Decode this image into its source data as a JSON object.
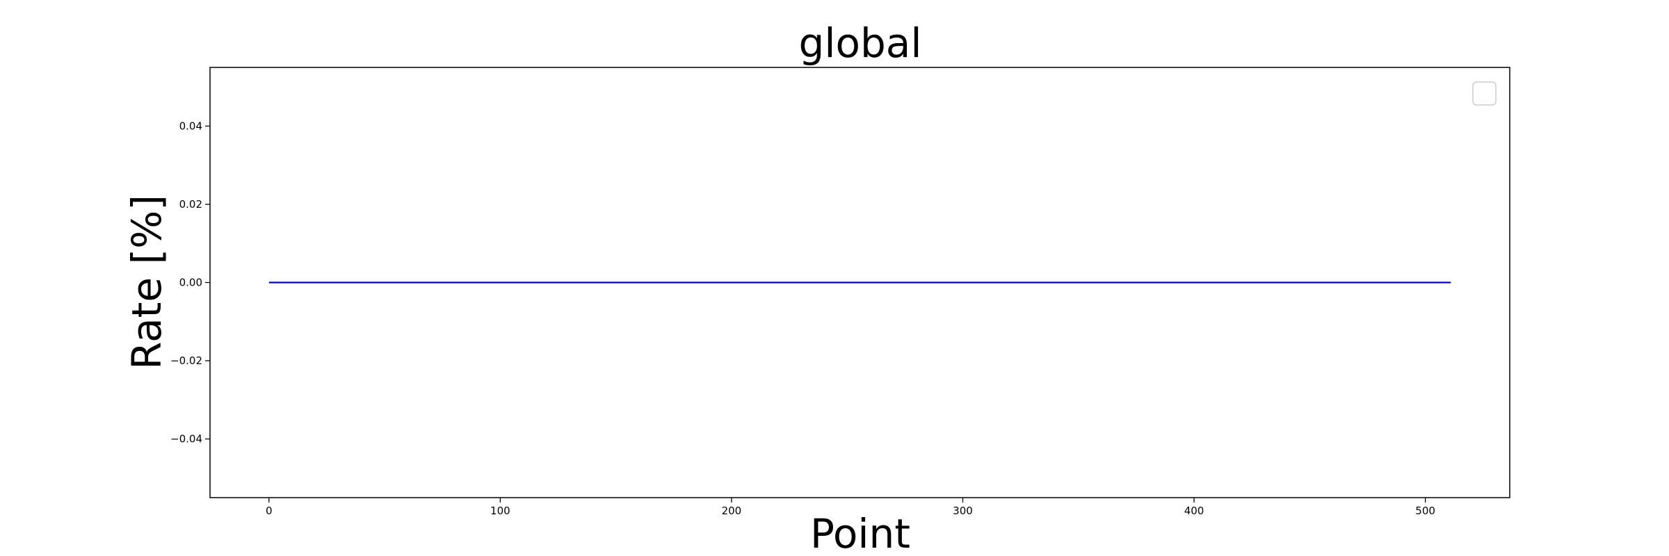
{
  "chart_data": {
    "type": "line",
    "title": "global",
    "xlabel": "Point",
    "ylabel": "Rate [%]",
    "xlim": [
      -25.5,
      536.5
    ],
    "ylim": [
      -0.055,
      0.055
    ],
    "x_ticks": [
      0,
      100,
      200,
      300,
      400,
      500
    ],
    "x_tick_labels": [
      "0",
      "100",
      "200",
      "300",
      "400",
      "500"
    ],
    "y_ticks": [
      -0.04,
      -0.02,
      0.0,
      0.02,
      0.04
    ],
    "y_tick_labels": [
      "−0.04",
      "−0.02",
      "0.00",
      "0.02",
      "0.04"
    ],
    "grid": false,
    "legend": "top-right",
    "legend_entries": [],
    "series": [
      {
        "color": "#0000cc",
        "x": [
          0,
          511
        ],
        "y": [
          0,
          0
        ]
      }
    ]
  }
}
